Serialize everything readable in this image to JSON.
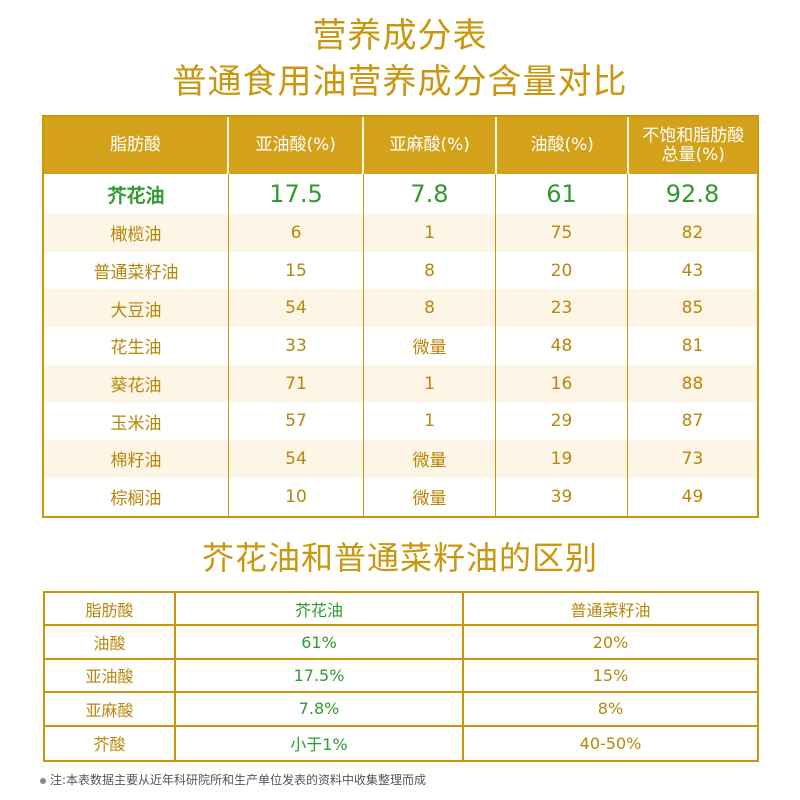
{
  "title_line1": "营养成分表",
  "title_line2": "普通食用油营养成分含量对比",
  "table1": {
    "headers": [
      "脂肪酸",
      "亚油酸(%)",
      "亚麻酸(%)",
      "油酸(%)",
      "不饱和脂肪酸总量(%)"
    ],
    "header_last_line1": "不饱和脂肪酸",
    "header_last_line2": "总量(%)",
    "rows": [
      [
        "芥花油",
        "17.5",
        "7.8",
        "61",
        "92.8"
      ],
      [
        "橄榄油",
        "6",
        "1",
        "75",
        "82"
      ],
      [
        "普通菜籽油",
        "15",
        "8",
        "20",
        "43"
      ],
      [
        "大豆油",
        "54",
        "8",
        "23",
        "85"
      ],
      [
        "花生油",
        "33",
        "微量",
        "48",
        "81"
      ],
      [
        "葵花油",
        "71",
        "1",
        "16",
        "88"
      ],
      [
        "玉米油",
        "57",
        "1",
        "29",
        "87"
      ],
      [
        "棉籽油",
        "54",
        "微量",
        "19",
        "73"
      ],
      [
        "棕榈油",
        "10",
        "微量",
        "39",
        "49"
      ]
    ]
  },
  "title_section2": "芥花油和普通菜籽油的区别",
  "table2": {
    "headers": [
      "脂肪酸",
      "芥花油",
      "普通菜籽油"
    ],
    "rows": [
      [
        "油酸",
        "61%",
        "20%"
      ],
      [
        "亚油酸",
        "17.5%",
        "15%"
      ],
      [
        "亚麻酸",
        "7.8%",
        "8%"
      ],
      [
        "芥酸",
        "小于1%",
        "40-50%"
      ]
    ]
  },
  "footnote": "注:本表数据主要从近年科研院所和生产单位发表的资料中收集整理而成",
  "colors": {
    "accent": "#d4a21a",
    "green": "#2f9a2f",
    "row_tint": "#fdf6e6"
  }
}
